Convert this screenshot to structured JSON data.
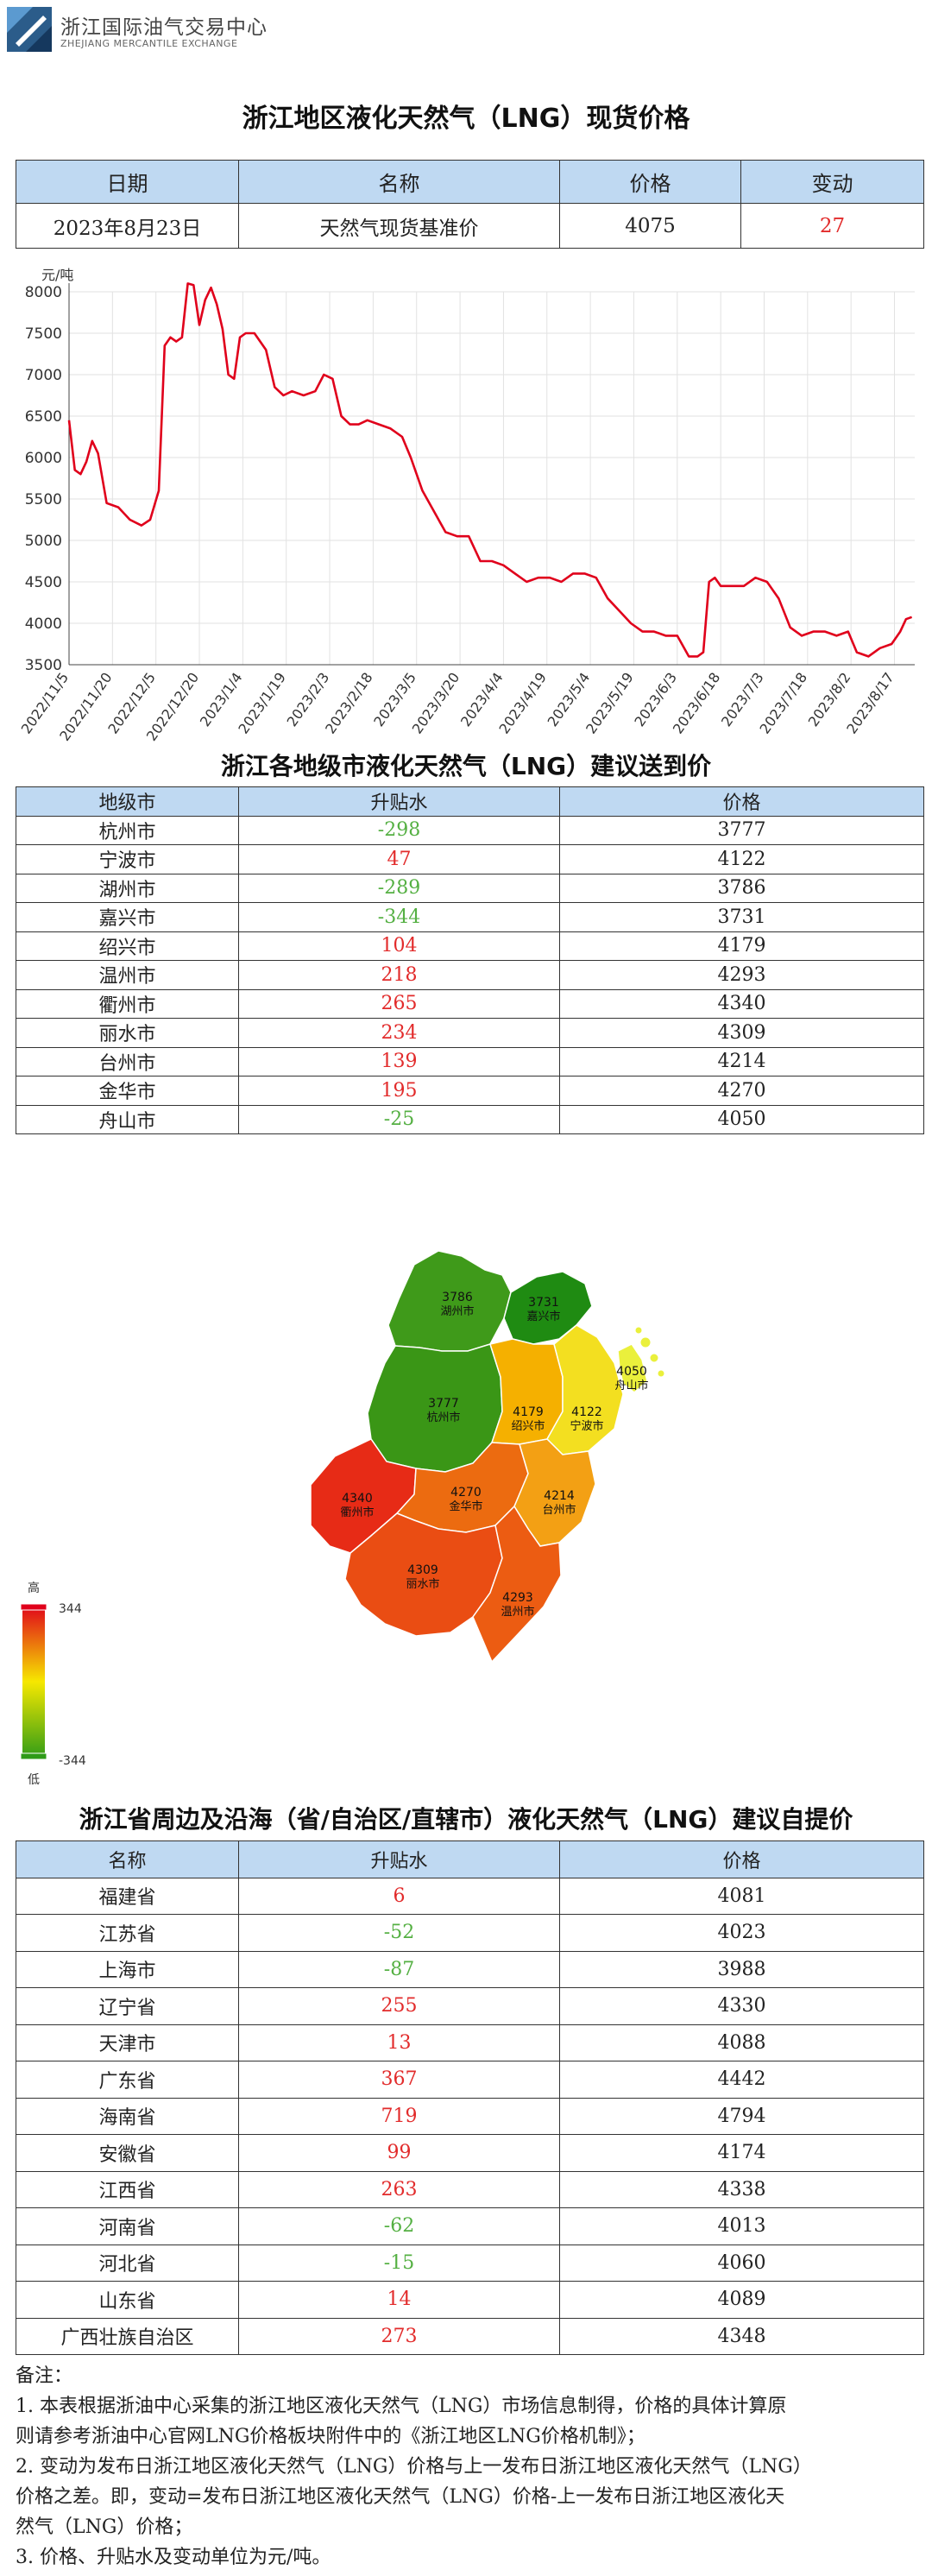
{
  "header": {
    "logo_cn": "浙江国际油气交易中心",
    "logo_en": "ZHEJIANG MERCANTILE EXCHANGE",
    "title": "浙江地区液化天然气（LNG）现货价格"
  },
  "spot_table": {
    "headers": [
      "日期",
      "名称",
      "价格",
      "变动"
    ],
    "row": {
      "date": "2023年8月23日",
      "name": "天然气现货基准价",
      "price": "4075",
      "change": "27"
    }
  },
  "chart_data": {
    "type": "line",
    "ylabel": "元/吨",
    "ylim": [
      3500,
      8000
    ],
    "yticks": [
      3500,
      4000,
      4500,
      5000,
      5500,
      6000,
      6500,
      7000,
      7500,
      8000
    ],
    "xlim": [
      "2022-11-05",
      "2023-08-24"
    ],
    "xticks": [
      "2022/11/5",
      "2022/11/20",
      "2022/12/5",
      "2022/12/20",
      "2023/1/4",
      "2023/1/19",
      "2023/2/3",
      "2023/2/18",
      "2023/3/5",
      "2023/3/20",
      "2023/4/4",
      "2023/4/19",
      "2023/5/4",
      "2023/5/19",
      "2023/6/3",
      "2023/6/18",
      "2023/7/3",
      "2023/7/18",
      "2023/8/2",
      "2023/8/17"
    ],
    "grid": true,
    "color": "#e0001b",
    "series": [
      {
        "x": [
          "2022-11-05",
          "2022-11-07",
          "2022-11-09",
          "2022-11-11",
          "2022-11-13",
          "2022-11-15",
          "2022-11-18",
          "2022-11-22",
          "2022-11-26",
          "2022-11-30",
          "2022-12-03",
          "2022-12-06",
          "2022-12-08",
          "2022-12-10",
          "2022-12-12",
          "2022-12-14",
          "2022-12-16",
          "2022-12-18",
          "2022-12-20",
          "2022-12-22",
          "2022-12-24",
          "2022-12-26",
          "2022-12-28",
          "2022-12-30",
          "2023-01-01",
          "2023-01-03",
          "2023-01-05",
          "2023-01-08",
          "2023-01-12",
          "2023-01-15",
          "2023-01-18",
          "2023-01-21",
          "2023-01-25",
          "2023-01-29",
          "2023-02-01",
          "2023-02-04",
          "2023-02-07",
          "2023-02-10",
          "2023-02-13",
          "2023-02-16",
          "2023-02-20",
          "2023-02-24",
          "2023-02-28",
          "2023-03-03",
          "2023-03-07",
          "2023-03-11",
          "2023-03-15",
          "2023-03-19",
          "2023-03-23",
          "2023-03-27",
          "2023-03-31",
          "2023-04-04",
          "2023-04-08",
          "2023-04-12",
          "2023-04-16",
          "2023-04-20",
          "2023-04-24",
          "2023-04-28",
          "2023-05-02",
          "2023-05-06",
          "2023-05-10",
          "2023-05-14",
          "2023-05-18",
          "2023-05-22",
          "2023-05-26",
          "2023-05-30",
          "2023-06-03",
          "2023-06-07",
          "2023-06-10",
          "2023-06-12",
          "2023-06-14",
          "2023-06-16",
          "2023-06-18",
          "2023-06-22",
          "2023-06-26",
          "2023-06-30",
          "2023-07-04",
          "2023-07-08",
          "2023-07-12",
          "2023-07-16",
          "2023-07-20",
          "2023-07-24",
          "2023-07-28",
          "2023-08-01",
          "2023-08-04",
          "2023-08-08",
          "2023-08-12",
          "2023-08-16",
          "2023-08-19",
          "2023-08-21",
          "2023-08-23"
        ],
        "values": [
          6450,
          5850,
          5800,
          5950,
          6200,
          6050,
          5450,
          5400,
          5250,
          5180,
          5250,
          5600,
          7350,
          7450,
          7400,
          7450,
          8100,
          8080,
          7600,
          7900,
          8050,
          7850,
          7550,
          7000,
          6950,
          7450,
          7500,
          7500,
          7300,
          6850,
          6750,
          6800,
          6750,
          6800,
          7000,
          6950,
          6500,
          6400,
          6400,
          6450,
          6400,
          6350,
          6250,
          6000,
          5600,
          5350,
          5100,
          5050,
          5050,
          4750,
          4750,
          4700,
          4600,
          4500,
          4550,
          4550,
          4500,
          4600,
          4600,
          4550,
          4300,
          4150,
          4000,
          3900,
          3900,
          3850,
          3850,
          3600,
          3600,
          3650,
          4500,
          4550,
          4450,
          4450,
          4450,
          4550,
          4500,
          4300,
          3950,
          3850,
          3900,
          3900,
          3850,
          3900,
          3650,
          3600,
          3700,
          3750,
          3900,
          4050,
          4075
        ]
      }
    ]
  },
  "city_section": {
    "title": "浙江各地级市液化天然气（LNG）建议送到价",
    "headers": [
      "地级市",
      "升贴水",
      "价格"
    ],
    "rows": [
      {
        "name": "杭州市",
        "diff": "-298",
        "price": "3777"
      },
      {
        "name": "宁波市",
        "diff": "47",
        "price": "4122"
      },
      {
        "name": "湖州市",
        "diff": "-289",
        "price": "3786"
      },
      {
        "name": "嘉兴市",
        "diff": "-344",
        "price": "3731"
      },
      {
        "name": "绍兴市",
        "diff": "104",
        "price": "4179"
      },
      {
        "name": "温州市",
        "diff": "218",
        "price": "4293"
      },
      {
        "name": "衢州市",
        "diff": "265",
        "price": "4340"
      },
      {
        "name": "丽水市",
        "diff": "234",
        "price": "4309"
      },
      {
        "name": "台州市",
        "diff": "139",
        "price": "4214"
      },
      {
        "name": "金华市",
        "diff": "195",
        "price": "4270"
      },
      {
        "name": "舟山市",
        "diff": "-25",
        "price": "4050"
      }
    ]
  },
  "map": {
    "legend_high": "高",
    "legend_low": "低",
    "legend_max": "344",
    "legend_min": "-344",
    "colors": {
      "high": "#e0001b",
      "mid": "#f6e800",
      "low": "#2e9b17"
    },
    "regions": [
      {
        "name": "湖州市",
        "price": "3786",
        "color": "#3f9a1a"
      },
      {
        "name": "嘉兴市",
        "price": "3731",
        "color": "#1f8b12"
      },
      {
        "name": "杭州市",
        "price": "3777",
        "color": "#3a9616"
      },
      {
        "name": "绍兴市",
        "price": "4179",
        "color": "#f5b000"
      },
      {
        "name": "宁波市",
        "price": "4122",
        "color": "#f3df20"
      },
      {
        "name": "舟山市",
        "price": "4050",
        "color": "#eaf03c"
      },
      {
        "name": "衢州市",
        "price": "4340",
        "color": "#e72b16"
      },
      {
        "name": "金华市",
        "price": "4270",
        "color": "#ec6b10"
      },
      {
        "name": "台州市",
        "price": "4214",
        "color": "#f3a014"
      },
      {
        "name": "丽水市",
        "price": "4309",
        "color": "#ea4d13"
      },
      {
        "name": "温州市",
        "price": "4293",
        "color": "#ec5c12"
      }
    ]
  },
  "province_section": {
    "title": "浙江省周边及沿海（省/自治区/直辖市）液化天然气（LNG）建议自提价",
    "headers": [
      "名称",
      "升贴水",
      "价格"
    ],
    "rows": [
      {
        "name": "福建省",
        "diff": "6",
        "price": "4081"
      },
      {
        "name": "江苏省",
        "diff": "-52",
        "price": "4023"
      },
      {
        "name": "上海市",
        "diff": "-87",
        "price": "3988"
      },
      {
        "name": "辽宁省",
        "diff": "255",
        "price": "4330"
      },
      {
        "name": "天津市",
        "diff": "13",
        "price": "4088"
      },
      {
        "name": "广东省",
        "diff": "367",
        "price": "4442"
      },
      {
        "name": "海南省",
        "diff": "719",
        "price": "4794"
      },
      {
        "name": "安徽省",
        "diff": "99",
        "price": "4174"
      },
      {
        "name": "江西省",
        "diff": "263",
        "price": "4338"
      },
      {
        "name": "河南省",
        "diff": "-62",
        "price": "4013"
      },
      {
        "name": "河北省",
        "diff": "-15",
        "price": "4060"
      },
      {
        "name": "山东省",
        "diff": "14",
        "price": "4089"
      },
      {
        "name": "广西壮族自治区",
        "diff": "273",
        "price": "4348"
      }
    ]
  },
  "notes": {
    "title": "备注：",
    "lines": [
      "1. 本表根据浙油中心采集的浙江地区液化天然气（LNG）市场信息制得，价格的具体计算原",
      "则请参考浙油中心官网LNG价格板块附件中的《浙江地区LNG价格机制》；",
      "2. 变动为发布日浙江地区液化天然气（LNG）价格与上一发布日浙江地区液化天然气（LNG）",
      "价格之差。即，变动=发布日浙江地区液化天然气（LNG）价格-上一发布日浙江地区液化天",
      "然气（LNG）价格；",
      "3. 价格、升贴水及变动单位为元/吨。"
    ]
  }
}
